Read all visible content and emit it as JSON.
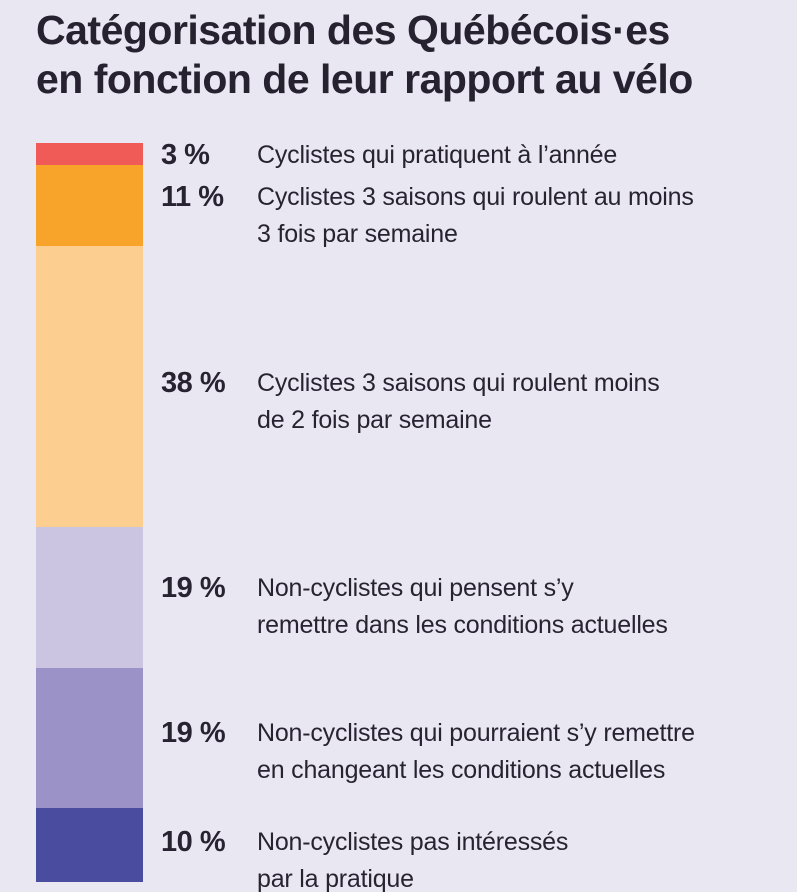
{
  "title": "Catégorisation des Québécois·es\nen fonction de leur rapport au vélo",
  "background_color": "#e9e7f1",
  "text_color": "#272230",
  "segments": [
    {
      "percent": "3 %",
      "value": 3,
      "color": "#f15b57",
      "label": "Cyclistes qui pratiquent à l’année"
    },
    {
      "percent": "11 %",
      "value": 11,
      "color": "#f8a42b",
      "label": "Cyclistes 3 saisons qui roulent au moins\n3 fois par semaine"
    },
    {
      "percent": "38 %",
      "value": 38,
      "color": "#fccf90",
      "label": "Cyclistes 3 saisons qui roulent moins\nde 2 fois par semaine"
    },
    {
      "percent": "19 %",
      "value": 19,
      "color": "#cbc5e1",
      "label": "Non-cyclistes qui pensent s’y\nremettre dans les conditions actuelles"
    },
    {
      "percent": "19 %",
      "value": 19,
      "color": "#9b93c8",
      "label": "Non-cyclistes qui pourraient s’y remettre\nen changeant les conditions actuelles"
    },
    {
      "percent": "10 %",
      "value": 10,
      "color": "#494c9f",
      "label": "Non-cyclistes pas intéressés\npar la pratique"
    }
  ],
  "chart_data": {
    "type": "bar",
    "subtype": "single-stacked-vertical-bar",
    "title": "Catégorisation des Québécois·es en fonction de leur rapport au vélo",
    "unit": "%",
    "categories": [
      "Cyclistes qui pratiquent à l’année",
      "Cyclistes 3 saisons qui roulent au moins 3 fois par semaine",
      "Cyclistes 3 saisons qui roulent moins de 2 fois par semaine",
      "Non-cyclistes qui pensent s’y remettre dans les conditions actuelles",
      "Non-cyclistes qui pourraient s’y remettre en changeant les conditions actuelles",
      "Non-cyclistes pas intéressés par la pratique"
    ],
    "values": [
      3,
      11,
      38,
      19,
      19,
      10
    ],
    "colors": [
      "#f15b57",
      "#f8a42b",
      "#fccf90",
      "#cbc5e1",
      "#9b93c8",
      "#494c9f"
    ],
    "data_labels": [
      "3 %",
      "11 %",
      "38 %",
      "19 %",
      "19 %",
      "10 %"
    ],
    "legend_position": "right-of-bar",
    "axes": "none",
    "grid": false,
    "total": 100
  }
}
